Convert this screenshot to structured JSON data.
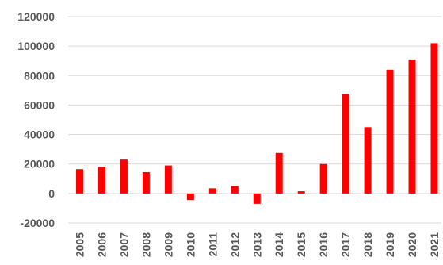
{
  "chart_data": {
    "type": "bar",
    "categories": [
      "2005",
      "2006",
      "2007",
      "2008",
      "2009",
      "2010",
      "2011",
      "2012",
      "2013",
      "2014",
      "2015",
      "2016",
      "2017",
      "2018",
      "2019",
      "2020",
      "2021"
    ],
    "values": [
      16500,
      18000,
      23000,
      14500,
      19000,
      -4500,
      3500,
      5000,
      -7000,
      27500,
      1500,
      20000,
      67500,
      45000,
      84000,
      91000,
      102000
    ],
    "ylim": [
      -20000,
      120000
    ],
    "yticks": [
      -20000,
      0,
      20000,
      40000,
      60000,
      80000,
      100000,
      120000
    ],
    "ytick_labels": [
      "-20000",
      "0",
      "20000",
      "40000",
      "60000",
      "80000",
      "100000",
      "120000"
    ],
    "grid": true,
    "bar_color": "#ff0000",
    "title": "",
    "xlabel": "",
    "ylabel": ""
  }
}
